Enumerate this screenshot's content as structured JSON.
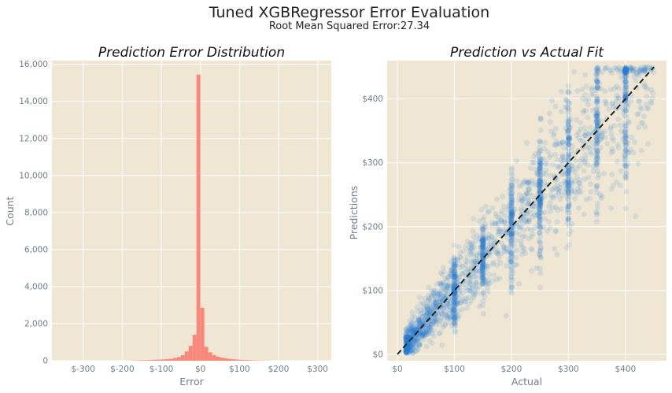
{
  "figure": {
    "title": "Tuned XGBRegressor Error Evaluation",
    "subtitle": "Root Mean Squared Error:27.34",
    "colors": {
      "background": "#efe7d3",
      "grid": "#ffffff",
      "hist": "#f8887a",
      "scatter": "#2a7fd4",
      "fitline": "#222222",
      "text": "#6f7f8c"
    }
  },
  "chart_data": [
    {
      "type": "bar",
      "title": "Prediction Error Distribution",
      "xlabel": "Error",
      "ylabel": "Count",
      "xlim": [
        -380,
        335
      ],
      "ylim": [
        0,
        16200
      ],
      "xticks": [
        -300,
        -200,
        -100,
        0,
        100,
        200,
        300
      ],
      "xtick_labels": [
        "$-300",
        "$-200",
        "$-100",
        "$0",
        "$100",
        "$200",
        "$300"
      ],
      "yticks": [
        0,
        2000,
        4000,
        6000,
        8000,
        10000,
        12000,
        14000,
        16000
      ],
      "ytick_labels": [
        "0",
        "2,000",
        "4,000",
        "6,000",
        "8,000",
        "10,000",
        "12,000",
        "14,000",
        "16,000"
      ],
      "bin_width": 10,
      "bin_starts": [
        -180,
        -170,
        -160,
        -150,
        -140,
        -130,
        -120,
        -110,
        -100,
        -90,
        -80,
        -70,
        -60,
        -50,
        -40,
        -30,
        -20,
        -10,
        0,
        10,
        20,
        30,
        40,
        50,
        60,
        70,
        80,
        90,
        100,
        110,
        120,
        130,
        140,
        150,
        160,
        170
      ],
      "values": [
        10,
        15,
        20,
        25,
        30,
        40,
        50,
        60,
        70,
        80,
        100,
        150,
        200,
        300,
        500,
        800,
        1400,
        15450,
        2850,
        750,
        450,
        300,
        220,
        170,
        130,
        100,
        80,
        60,
        50,
        40,
        30,
        20,
        15,
        10,
        8,
        5
      ],
      "grid": true
    },
    {
      "type": "scatter",
      "title": "Prediction vs Actual Fit",
      "xlabel": "Actual",
      "ylabel": "Predictions",
      "xlim": [
        -18,
        472
      ],
      "ylim": [
        -10,
        460
      ],
      "xticks": [
        0,
        100,
        200,
        300,
        400
      ],
      "xtick_labels": [
        "$0",
        "$100",
        "$200",
        "$300",
        "$400"
      ],
      "yticks": [
        0,
        100,
        200,
        300,
        400
      ],
      "ytick_labels": [
        "$0",
        "$100",
        "$200",
        "$300",
        "$400"
      ],
      "fit_line": {
        "x": [
          0,
          450
        ],
        "y": [
          0,
          450
        ]
      },
      "point_count": 2400,
      "grid": true
    }
  ]
}
